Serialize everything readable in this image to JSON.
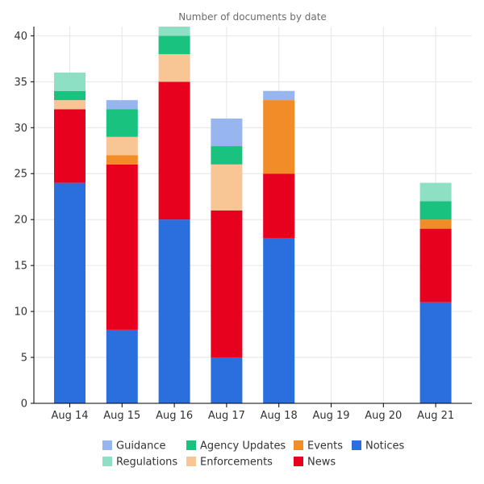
{
  "chart_data": {
    "type": "bar",
    "stacked": true,
    "title": "Number of documents by date",
    "xlabel": "",
    "ylabel": "",
    "categories": [
      "Aug 14",
      "Aug 15",
      "Aug 16",
      "Aug 17",
      "Aug 18",
      "Aug 19",
      "Aug 20",
      "Aug 21"
    ],
    "ylim": [
      0,
      41
    ],
    "yticks": [
      0,
      5,
      10,
      15,
      20,
      25,
      30,
      35,
      40
    ],
    "grid": true,
    "legend_position": "bottom",
    "series": [
      {
        "name": "Notices",
        "color": "#2b6fdf",
        "values": [
          24,
          8,
          20,
          5,
          18,
          0,
          0,
          11
        ]
      },
      {
        "name": "News",
        "color": "#e8001f",
        "values": [
          8,
          18,
          15,
          16,
          7,
          0,
          0,
          8
        ]
      },
      {
        "name": "Events",
        "color": "#f28c28",
        "values": [
          0,
          1,
          0,
          0,
          8,
          0,
          0,
          1
        ]
      },
      {
        "name": "Enforcements",
        "color": "#f8c594",
        "values": [
          1,
          2,
          3,
          5,
          0,
          0,
          0,
          0
        ]
      },
      {
        "name": "Agency Updates",
        "color": "#19c27f",
        "values": [
          1,
          3,
          2,
          2,
          0,
          0,
          0,
          2
        ]
      },
      {
        "name": "Regulations",
        "color": "#8de0c3",
        "values": [
          2,
          0,
          1,
          0,
          0,
          0,
          0,
          2
        ]
      },
      {
        "name": "Guidance",
        "color": "#97b5ee",
        "values": [
          0,
          1,
          0,
          3,
          1,
          0,
          0,
          0
        ]
      }
    ],
    "legend_order": [
      "Guidance",
      "Regulations",
      "Agency Updates",
      "Enforcements",
      "Events",
      "News",
      "Notices"
    ]
  }
}
